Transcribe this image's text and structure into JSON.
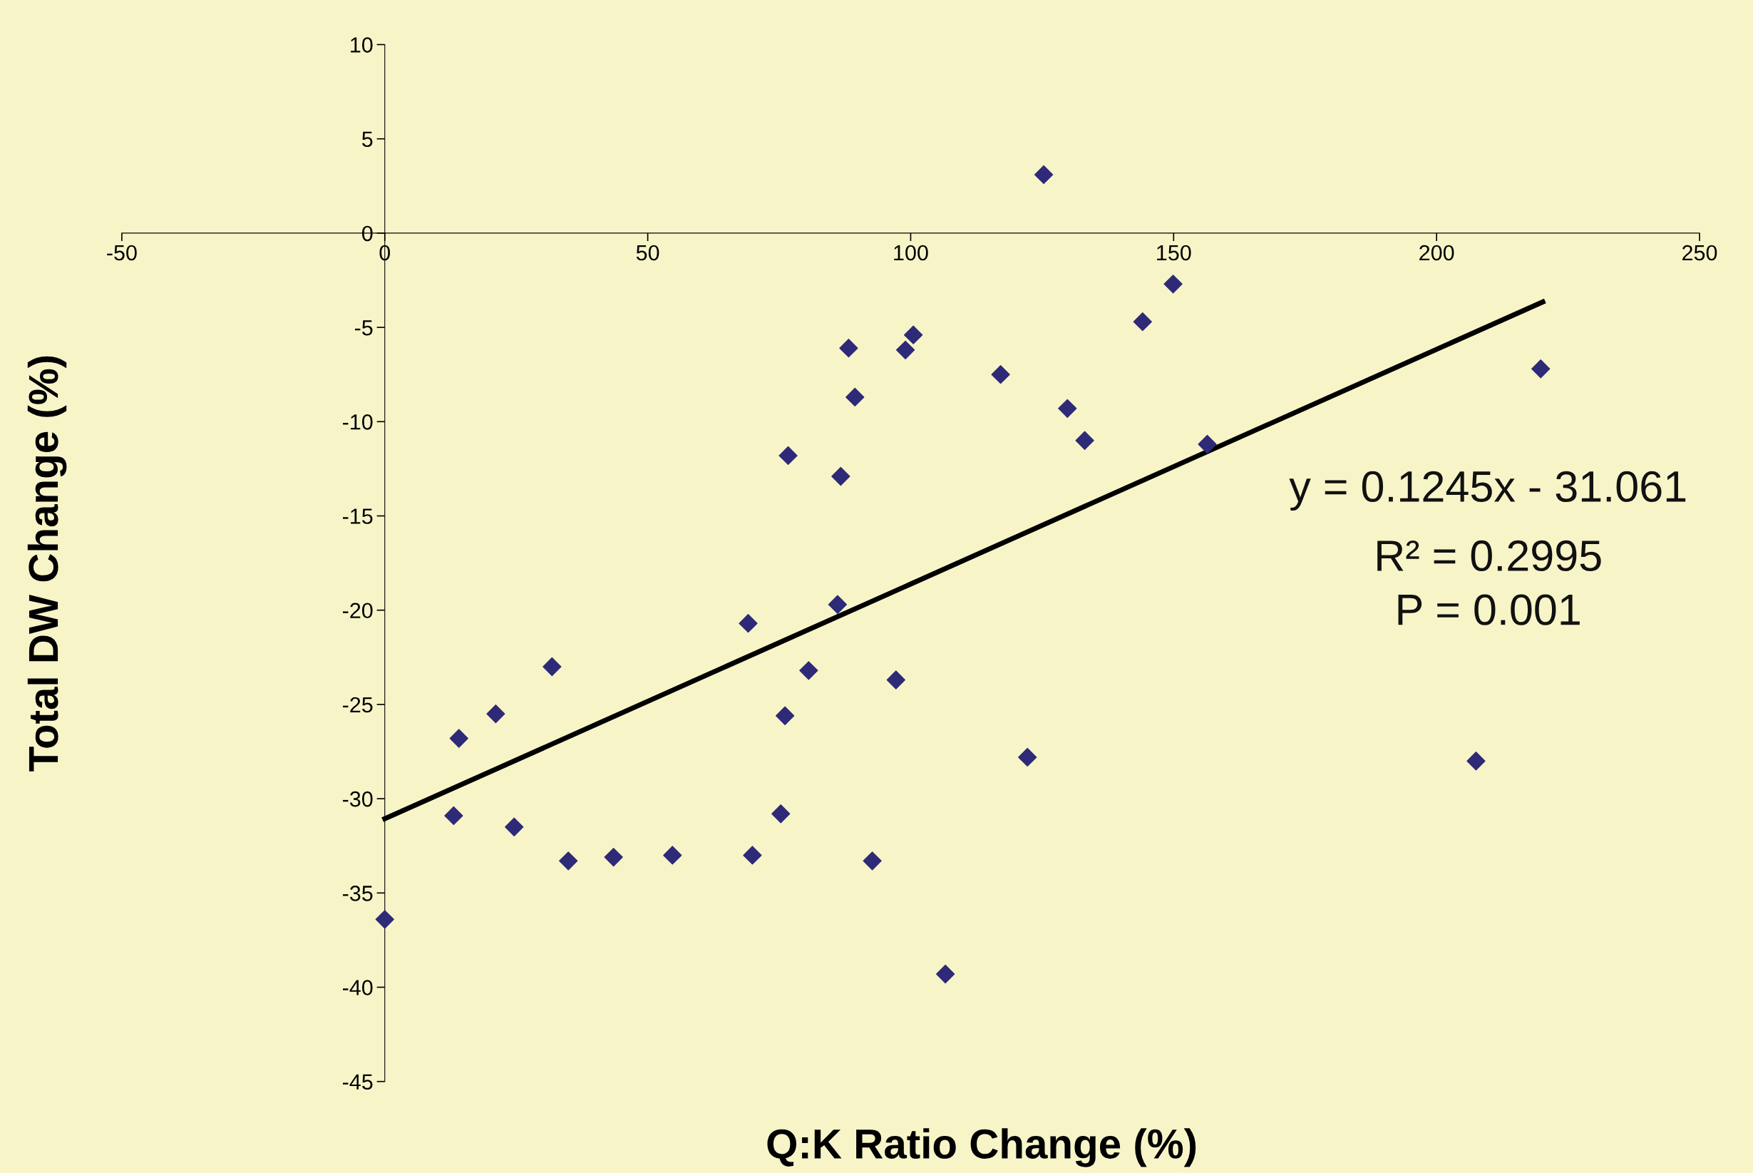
{
  "chart_data": {
    "type": "scatter",
    "xlabel": "Q:K Ratio Change (%)",
    "ylabel": "Total DW Change (%)",
    "x": [
      125.3,
      149.9,
      144.1,
      100.5,
      88.2,
      99.0,
      219.8,
      117.1,
      89.4,
      129.8,
      133.1,
      156.4,
      76.7,
      86.7,
      86.1,
      69.1,
      31.8,
      80.6,
      97.2,
      21.1,
      76.1,
      14.1,
      122.2,
      207.5,
      75.3,
      13.1,
      24.6,
      34.9,
      43.5,
      54.7,
      69.9,
      92.7,
      0,
      106.6
    ],
    "series": [
      {
        "color": "#2e2a78",
        "marker": "diamond",
        "values": [
          3.1,
          -2.7,
          -4.7,
          -5.4,
          -6.1,
          -6.2,
          -7.2,
          -7.5,
          -8.7,
          -9.3,
          -11.0,
          -11.2,
          -11.8,
          -12.9,
          -19.7,
          -20.7,
          -23.0,
          -23.2,
          -23.7,
          -25.5,
          -25.6,
          -26.8,
          -27.8,
          -28.0,
          -30.8,
          -30.9,
          -31.5,
          -33.3,
          -33.1,
          -33.0,
          -33.0,
          -33.3,
          -36.4,
          -39.3
        ]
      },
      {
        "type": "line",
        "color": "#000000",
        "marker": "none",
        "line_style": "solid",
        "x": [
          0,
          220.2
        ],
        "values": [
          -31.06,
          -3.65
        ]
      }
    ],
    "xlim": [
      -50,
      250
    ],
    "ylim": [
      -45,
      10
    ],
    "xticks": [
      -50,
      0,
      50,
      100,
      150,
      200,
      250
    ],
    "yticks": [
      -45,
      -40,
      -35,
      -30,
      -25,
      -20,
      -15,
      -10,
      -5,
      0,
      5,
      10
    ],
    "grid": false,
    "legend": false,
    "annotations": [
      "y = 0.1245x - 31.061",
      "R² = 0.2995",
      "P = 0.001"
    ]
  }
}
